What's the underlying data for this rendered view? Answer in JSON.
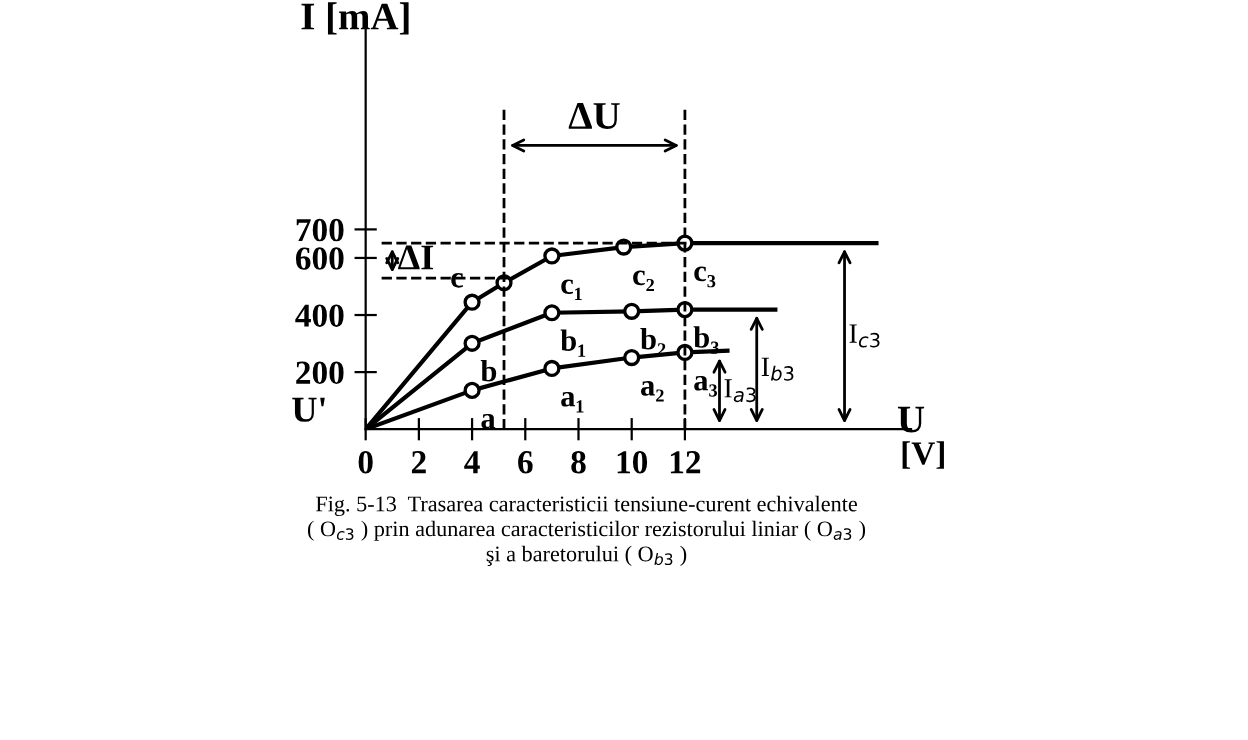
{
  "chart_data": {
    "type": "line",
    "ylabel": "I [mA]",
    "xlabel": "U",
    "marker": "circle",
    "line_style": "solid",
    "grid": false,
    "xlim": [
      0,
      20.5
    ],
    "ylim": [
      0,
      1400
    ],
    "xticks": [
      0,
      2,
      4,
      6,
      8,
      10,
      12
    ],
    "yticks": [
      200,
      400,
      600,
      700
    ],
    "series": [
      {
        "color": "#000000",
        "x": [
          0,
          4,
          7,
          10,
          12,
          13.6
        ],
        "values": [
          0,
          136,
          213,
          251,
          269,
          275
        ]
      },
      {
        "color": "#000000",
        "x": [
          0,
          4,
          7,
          10,
          12,
          15.4
        ],
        "values": [
          0,
          301,
          408,
          413,
          419,
          419
        ]
      },
      {
        "color": "#000000",
        "x": [
          0,
          4,
          5.2,
          7,
          9.7,
          12,
          19.2
        ],
        "values": [
          0,
          445,
          513,
          607,
          638,
          652,
          652
        ]
      }
    ],
    "ref_lines": [
      {
        "axis": "x",
        "value": 5.2,
        "line_style": "dashed",
        "color": "#000000"
      },
      {
        "axis": "x",
        "value": 12,
        "line_style": "dashed",
        "color": "#000000"
      },
      {
        "axis": "y",
        "value": 652,
        "line_style": "dashed",
        "color": "#000000"
      },
      {
        "axis": "y",
        "value": 529,
        "line_style": "dashed",
        "color": "#000000"
      }
    ],
    "annotations": [
      {
        "text": "a",
        "x": 4,
        "y": 136
      },
      {
        "text": "a₁",
        "x": 7,
        "y": 213
      },
      {
        "text": "a₂",
        "x": 10,
        "y": 251
      },
      {
        "text": "a₃",
        "x": 12,
        "y": 269
      },
      {
        "text": "b",
        "x": 4,
        "y": 301
      },
      {
        "text": "b₁",
        "x": 7,
        "y": 408
      },
      {
        "text": "b₂",
        "x": 10,
        "y": 413
      },
      {
        "text": "b₃",
        "x": 12,
        "y": 419
      },
      {
        "text": "c",
        "x": 4,
        "y": 445
      },
      {
        "text": "c₁",
        "x": 7,
        "y": 607
      },
      {
        "text": "c₂",
        "x": 9.7,
        "y": 638
      },
      {
        "text": "c₃",
        "x": 12,
        "y": 652
      },
      {
        "text": "I$_{a3}$",
        "x": 13.3,
        "y": 269
      },
      {
        "text": "I$_{b3}$",
        "x": 14.7,
        "y": 419
      },
      {
        "text": "I$_{c3}$",
        "x": 18,
        "y": 652
      },
      "ΔU",
      "ΔI",
      "U'",
      "[V]",
      "Fig. 5-13  Trasarea caracteristicii tensiune-curent echivalente\n( O$_{c3}$ ) prin adunarea caracteristicilor rezistorului liniar ( O$_{a3}$ )\nşi a baretorului ( O$_{b3}$ )"
    ]
  }
}
